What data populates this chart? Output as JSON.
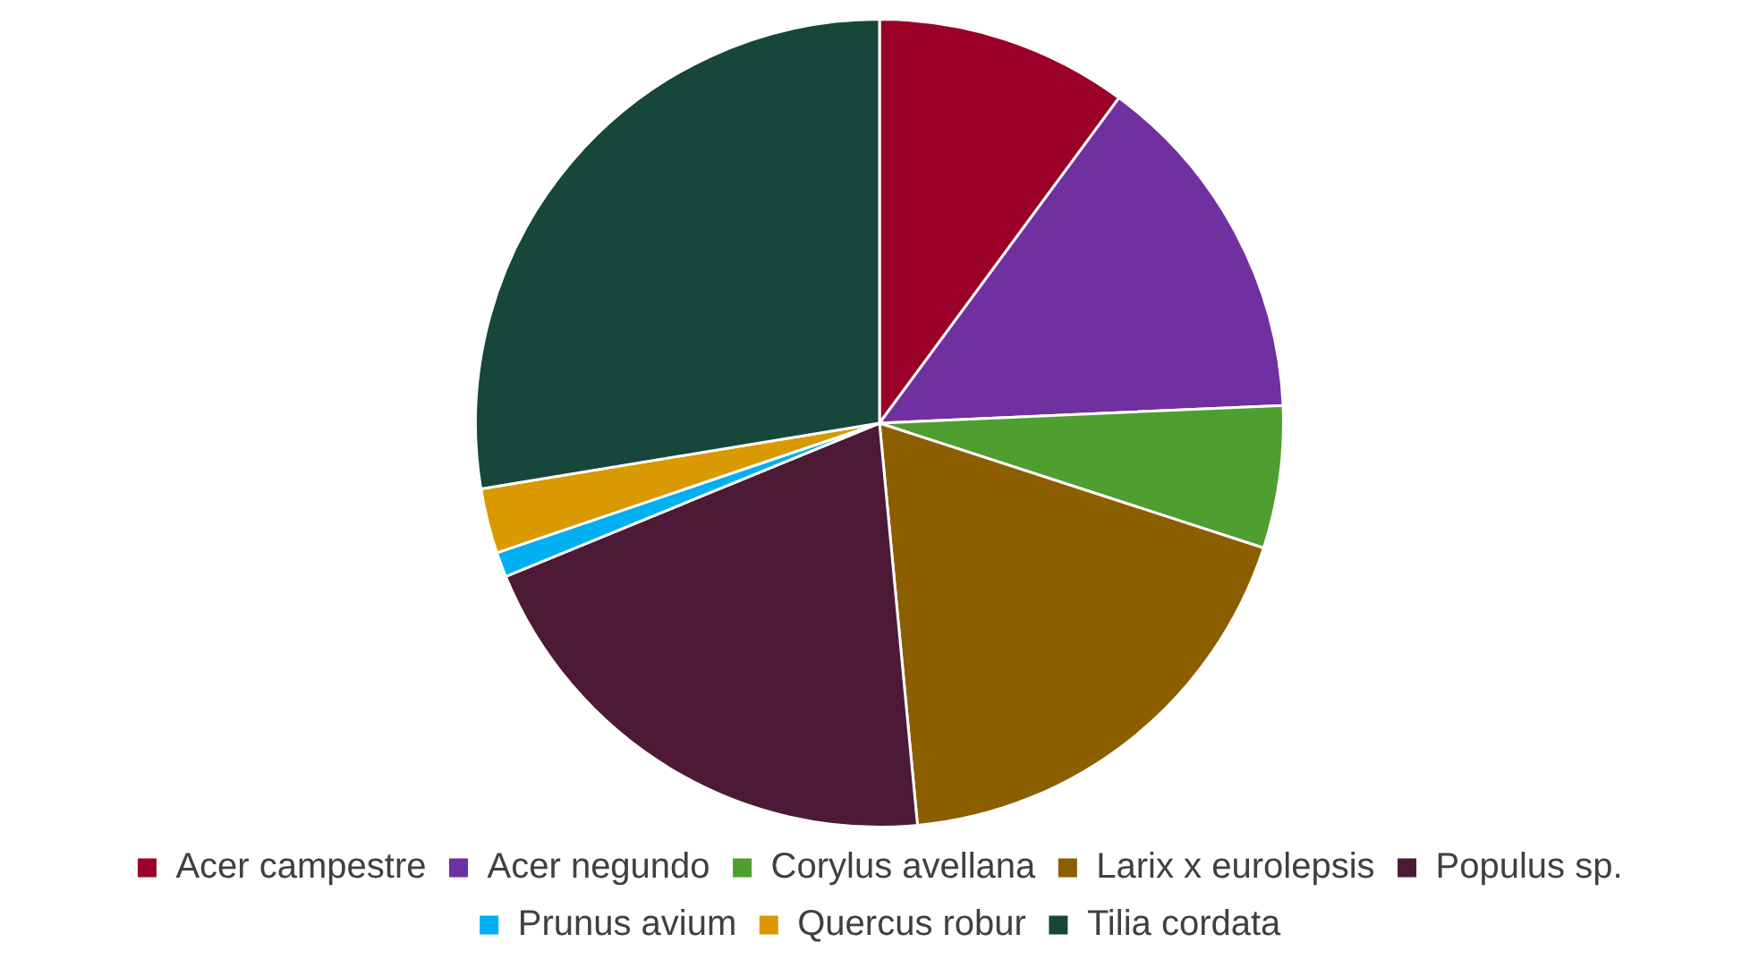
{
  "chart_data": {
    "type": "pie",
    "categories": [
      "Acer campestre",
      "Acer negundo",
      "Corylus avellana",
      "Larix x eurolepsis",
      "Populus sp.",
      "Prunus avium",
      "Quercus robur",
      "Tilia cordata"
    ],
    "values": [
      10.1,
      14.2,
      5.7,
      18.5,
      20.3,
      1.0,
      2.6,
      27.6
    ],
    "colors": [
      "#9b0028",
      "#7030a0",
      "#4f9e30",
      "#8b5f00",
      "#4c1a36",
      "#00b0f0",
      "#d89a00",
      "#17473a"
    ],
    "legend": "bottom"
  }
}
